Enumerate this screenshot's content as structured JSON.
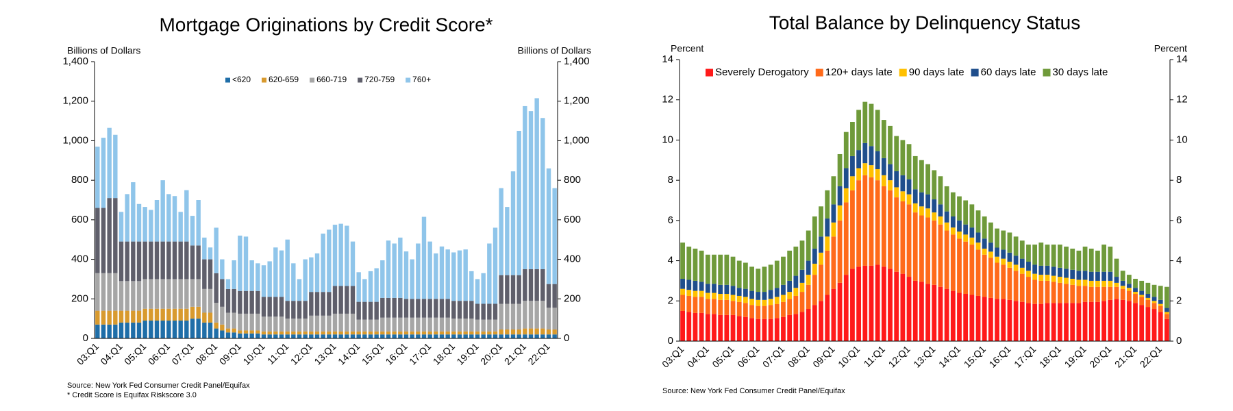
{
  "chart_data": [
    {
      "type": "stacked-bar",
      "title": "Mortgage Originations by Credit Score*",
      "y_label": "Billions of Dollars",
      "y2_label": "Billions of Dollars",
      "notes": [
        "Source: New York Fed Consumer Credit Panel/Equifax",
        "* Credit Score is Equifax Riskscore 3.0"
      ],
      "legend": "top-center",
      "grid": false,
      "ylim": [
        0,
        1400
      ],
      "yticks": [
        0,
        200,
        400,
        600,
        800,
        {
          "value": 1000,
          "label": "1,000"
        },
        {
          "value": 1200,
          "label": "1,200"
        },
        {
          "value": 1400,
          "label": "1,400"
        }
      ],
      "y2lim": [
        0,
        1400
      ],
      "y2ticks": [
        0,
        200,
        400,
        600,
        800,
        {
          "value": 1000,
          "label": "1,000"
        },
        {
          "value": 1200,
          "label": "1,200"
        },
        {
          "value": 1400,
          "label": "1,400"
        }
      ],
      "categories": [
        "03:Q1",
        null,
        null,
        null,
        "04:Q1",
        null,
        null,
        null,
        "05:Q1",
        null,
        null,
        null,
        "06:Q1",
        null,
        null,
        null,
        "07:Q1",
        null,
        null,
        null,
        "08:Q1",
        null,
        null,
        null,
        "09:Q1",
        null,
        null,
        null,
        "10:Q1",
        null,
        null,
        null,
        "11:Q1",
        null,
        null,
        null,
        "12:Q1",
        null,
        null,
        null,
        "13:Q1",
        null,
        null,
        null,
        "14:Q1",
        null,
        null,
        null,
        "15:Q1",
        null,
        null,
        null,
        "16:Q1",
        null,
        null,
        null,
        "17:Q1",
        null,
        null,
        null,
        "18:Q1",
        null,
        null,
        null,
        "19:Q1",
        null,
        null,
        null,
        "20:Q1",
        null,
        null,
        null,
        "21:Q1",
        null,
        null,
        null,
        "22:Q1",
        null
      ],
      "series": [
        {
          "name": "<620",
          "color": "#1f6ea8",
          "values": [
            70,
            70,
            70,
            70,
            80,
            80,
            80,
            80,
            90,
            90,
            90,
            90,
            90,
            90,
            90,
            90,
            100,
            100,
            80,
            80,
            50,
            40,
            30,
            30,
            25,
            25,
            25,
            25,
            20,
            20,
            20,
            20,
            20,
            20,
            20,
            20,
            20,
            20,
            20,
            20,
            20,
            20,
            20,
            20,
            20,
            20,
            20,
            20,
            20,
            20,
            20,
            20,
            20,
            20,
            20,
            20,
            20,
            20,
            20,
            20,
            20,
            20,
            20,
            20,
            20,
            20,
            20,
            20,
            20,
            20,
            20,
            20,
            20,
            20,
            20,
            20,
            20,
            20
          ]
        },
        {
          "name": "620-659",
          "color": "#d89a2e",
          "values": [
            70,
            70,
            70,
            70,
            60,
            60,
            60,
            60,
            60,
            60,
            60,
            60,
            60,
            60,
            60,
            60,
            60,
            60,
            50,
            50,
            30,
            30,
            20,
            20,
            15,
            15,
            15,
            15,
            15,
            15,
            15,
            15,
            15,
            15,
            15,
            15,
            15,
            15,
            15,
            15,
            15,
            15,
            15,
            15,
            15,
            15,
            15,
            15,
            15,
            15,
            15,
            15,
            15,
            15,
            15,
            15,
            15,
            15,
            15,
            15,
            15,
            15,
            15,
            15,
            15,
            15,
            15,
            15,
            25,
            25,
            25,
            25,
            30,
            30,
            30,
            30,
            25,
            25
          ]
        },
        {
          "name": "660-719",
          "color": "#a6a6a6",
          "values": [
            190,
            190,
            190,
            190,
            150,
            150,
            150,
            150,
            150,
            150,
            150,
            150,
            150,
            150,
            150,
            150,
            140,
            140,
            120,
            120,
            100,
            90,
            80,
            80,
            85,
            85,
            85,
            85,
            75,
            75,
            75,
            75,
            65,
            65,
            65,
            65,
            80,
            80,
            80,
            80,
            90,
            90,
            90,
            90,
            60,
            60,
            60,
            60,
            70,
            70,
            70,
            70,
            70,
            70,
            70,
            70,
            70,
            70,
            70,
            70,
            65,
            65,
            65,
            65,
            60,
            60,
            60,
            60,
            130,
            130,
            130,
            130,
            140,
            140,
            140,
            140,
            110,
            110
          ]
        },
        {
          "name": "720-759",
          "color": "#5f5f6b",
          "values": [
            330,
            330,
            380,
            380,
            200,
            200,
            200,
            200,
            190,
            190,
            190,
            190,
            190,
            190,
            190,
            190,
            170,
            170,
            150,
            150,
            150,
            140,
            120,
            120,
            115,
            115,
            115,
            115,
            100,
            100,
            100,
            100,
            90,
            90,
            90,
            90,
            120,
            120,
            120,
            120,
            140,
            140,
            140,
            140,
            90,
            90,
            90,
            90,
            100,
            100,
            100,
            100,
            95,
            95,
            95,
            95,
            95,
            95,
            95,
            95,
            90,
            90,
            90,
            90,
            80,
            80,
            80,
            80,
            145,
            145,
            145,
            145,
            160,
            160,
            160,
            160,
            120,
            120
          ]
        },
        {
          "name": "760+",
          "color": "#8fc5ea",
          "values": [
            310,
            355,
            355,
            320,
            150,
            240,
            300,
            190,
            175,
            160,
            210,
            310,
            240,
            230,
            150,
            260,
            150,
            230,
            110,
            60,
            230,
            100,
            50,
            145,
            280,
            275,
            155,
            140,
            160,
            180,
            250,
            235,
            310,
            190,
            110,
            210,
            175,
            195,
            295,
            315,
            310,
            315,
            305,
            225,
            150,
            115,
            155,
            170,
            190,
            290,
            275,
            305,
            240,
            200,
            280,
            415,
            290,
            230,
            265,
            250,
            245,
            255,
            260,
            150,
            125,
            155,
            305,
            385,
            440,
            345,
            525,
            730,
            825,
            800,
            865,
            765,
            585,
            485
          ]
        }
      ]
    },
    {
      "type": "stacked-bar",
      "title": "Total Balance by Delinquency Status",
      "y_label": "Percent",
      "y2_label": "Percent",
      "notes": [
        "Source: New York Fed Consumer Credit Panel/Equifax"
      ],
      "legend": "top-center",
      "grid": false,
      "ylim": [
        0,
        14
      ],
      "yticks": [
        0,
        2,
        4,
        6,
        8,
        10,
        12,
        14
      ],
      "y2lim": [
        0,
        14
      ],
      "y2ticks": [
        0,
        2,
        4,
        6,
        8,
        10,
        12,
        14
      ],
      "categories": [
        "03:Q1",
        null,
        null,
        null,
        "04:Q1",
        null,
        null,
        null,
        "05:Q1",
        null,
        null,
        null,
        "06:Q1",
        null,
        null,
        null,
        "07:Q1",
        null,
        null,
        null,
        "08:Q1",
        null,
        null,
        null,
        "09:Q1",
        null,
        null,
        null,
        "10:Q1",
        null,
        null,
        null,
        "11:Q1",
        null,
        null,
        null,
        "12:Q1",
        null,
        null,
        null,
        "13:Q1",
        null,
        null,
        null,
        "14:Q1",
        null,
        null,
        null,
        "15:Q1",
        null,
        null,
        null,
        "16:Q1",
        null,
        null,
        null,
        "17:Q1",
        null,
        null,
        null,
        "18:Q1",
        null,
        null,
        null,
        "19:Q1",
        null,
        null,
        null,
        "20:Q1",
        null,
        null,
        null,
        "21:Q1",
        null,
        null,
        null,
        "22:Q1",
        null
      ],
      "series": [
        {
          "name": "Severely Derogatory",
          "color": "#ff1a1a",
          "values": [
            1.5,
            1.45,
            1.4,
            1.4,
            1.35,
            1.35,
            1.3,
            1.3,
            1.3,
            1.25,
            1.2,
            1.15,
            1.1,
            1.1,
            1.1,
            1.15,
            1.2,
            1.3,
            1.35,
            1.45,
            1.6,
            1.8,
            2.0,
            2.3,
            2.6,
            2.9,
            3.3,
            3.6,
            3.7,
            3.75,
            3.75,
            3.8,
            3.7,
            3.6,
            3.45,
            3.35,
            3.2,
            3.0,
            2.95,
            2.85,
            2.8,
            2.7,
            2.6,
            2.5,
            2.4,
            2.35,
            2.3,
            2.25,
            2.2,
            2.15,
            2.1,
            2.1,
            2.05,
            2.0,
            1.95,
            1.9,
            1.85,
            1.85,
            1.9,
            1.9,
            1.9,
            1.9,
            1.9,
            1.9,
            1.95,
            1.95,
            1.95,
            2.0,
            2.05,
            2.1,
            2.05,
            2.0,
            1.9,
            1.8,
            1.7,
            1.6,
            1.45,
            1.1
          ]
        },
        {
          "name": "120+ days late",
          "color": "#ff6a1a",
          "values": [
            0.8,
            0.8,
            0.8,
            0.8,
            0.75,
            0.75,
            0.75,
            0.75,
            0.7,
            0.7,
            0.7,
            0.65,
            0.65,
            0.65,
            0.7,
            0.7,
            0.75,
            0.8,
            0.9,
            1.0,
            1.2,
            1.5,
            1.8,
            2.2,
            2.6,
            3.1,
            3.6,
            3.9,
            4.3,
            4.5,
            4.4,
            4.2,
            4.0,
            3.9,
            3.7,
            3.6,
            3.6,
            3.4,
            3.3,
            3.3,
            3.2,
            3.1,
            2.9,
            2.8,
            2.7,
            2.6,
            2.5,
            2.3,
            2.1,
            2.0,
            1.8,
            1.7,
            1.6,
            1.5,
            1.4,
            1.3,
            1.2,
            1.15,
            1.1,
            1.05,
            1.0,
            0.95,
            0.9,
            0.85,
            0.8,
            0.75,
            0.75,
            0.7,
            0.65,
            0.6,
            0.55,
            0.5,
            0.45,
            0.4,
            0.35,
            0.3,
            0.3,
            0.25
          ]
        },
        {
          "name": "90 days late",
          "color": "#ffc000",
          "values": [
            0.3,
            0.3,
            0.3,
            0.3,
            0.3,
            0.3,
            0.3,
            0.3,
            0.3,
            0.3,
            0.3,
            0.3,
            0.3,
            0.3,
            0.3,
            0.35,
            0.35,
            0.35,
            0.4,
            0.45,
            0.5,
            0.55,
            0.6,
            0.7,
            0.7,
            0.75,
            0.7,
            0.7,
            0.6,
            0.6,
            0.6,
            0.55,
            0.55,
            0.5,
            0.5,
            0.5,
            0.5,
            0.45,
            0.45,
            0.45,
            0.4,
            0.4,
            0.4,
            0.35,
            0.35,
            0.35,
            0.35,
            0.35,
            0.3,
            0.3,
            0.3,
            0.3,
            0.3,
            0.3,
            0.3,
            0.3,
            0.3,
            0.3,
            0.3,
            0.3,
            0.3,
            0.3,
            0.3,
            0.3,
            0.3,
            0.3,
            0.3,
            0.3,
            0.3,
            0.2,
            0.15,
            0.15,
            0.1,
            0.1,
            0.1,
            0.1,
            0.1,
            0.1
          ]
        },
        {
          "name": "60 days late",
          "color": "#1f4e8c",
          "values": [
            0.5,
            0.5,
            0.5,
            0.45,
            0.45,
            0.45,
            0.45,
            0.45,
            0.45,
            0.4,
            0.4,
            0.4,
            0.4,
            0.4,
            0.45,
            0.45,
            0.5,
            0.55,
            0.6,
            0.65,
            0.7,
            0.75,
            0.8,
            0.9,
            0.9,
            0.95,
            1.0,
            1.0,
            0.9,
            1.0,
            0.95,
            0.9,
            0.85,
            0.8,
            0.8,
            0.8,
            0.75,
            0.7,
            0.7,
            0.7,
            0.65,
            0.6,
            0.55,
            0.55,
            0.55,
            0.5,
            0.5,
            0.5,
            0.5,
            0.45,
            0.45,
            0.45,
            0.45,
            0.45,
            0.45,
            0.45,
            0.45,
            0.45,
            0.45,
            0.45,
            0.45,
            0.45,
            0.45,
            0.45,
            0.45,
            0.45,
            0.45,
            0.45,
            0.45,
            0.3,
            0.25,
            0.2,
            0.2,
            0.2,
            0.2,
            0.2,
            0.2,
            0.2
          ]
        },
        {
          "name": "30 days late",
          "color": "#6f9a3a",
          "values": [
            1.8,
            1.65,
            1.6,
            1.55,
            1.45,
            1.45,
            1.5,
            1.5,
            1.45,
            1.35,
            1.3,
            1.2,
            1.15,
            1.25,
            1.25,
            1.35,
            1.4,
            1.5,
            1.45,
            1.45,
            1.5,
            1.6,
            1.5,
            1.4,
            1.4,
            1.6,
            1.8,
            1.7,
            2.0,
            2.05,
            2.1,
            2.05,
            1.9,
            1.9,
            1.75,
            1.75,
            1.75,
            1.65,
            1.6,
            1.5,
            1.45,
            1.4,
            1.25,
            1.2,
            1.2,
            1.2,
            1.15,
            1.1,
            1.1,
            1.0,
            0.95,
            0.95,
            1.0,
            0.95,
            0.9,
            0.85,
            1.0,
            1.15,
            1.05,
            1.1,
            1.15,
            1.1,
            1.05,
            1.0,
            1.2,
            1.15,
            1.05,
            1.35,
            1.25,
            0.9,
            0.5,
            0.45,
            0.45,
            0.5,
            0.55,
            0.6,
            0.7,
            1.05
          ]
        }
      ]
    }
  ]
}
